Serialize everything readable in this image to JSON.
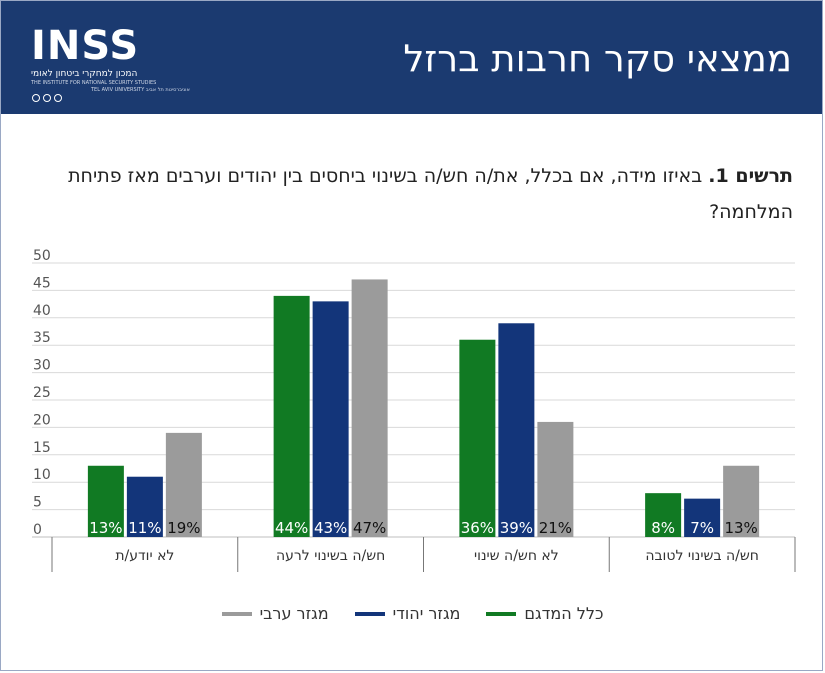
{
  "header": {
    "title": "ממצאי סקר חרבות ברזל",
    "logo_word": "INSS",
    "logo_hebrew": "המכון למחקרי ביטחון לאומי",
    "logo_english": "THE INSTITUTE FOR NATIONAL SECURITY STUDIES",
    "logo_university": "TEL AVIV UNIVERSITY אוניברסיטת תל אביב"
  },
  "question": {
    "prefix": "תרשים 1.",
    "text": " באיזו מידה, אם בכלל, את/ה חש/ה בשינוי ביחסים בין יהודים וערבים מאז פתיחת המלחמה?"
  },
  "chart_data": {
    "type": "bar",
    "categories": [
      "חש/ה בשינוי לטובה",
      "לא חש/ה שינוי",
      "חש/ה בשינוי לרעה",
      "לא יודע/ת"
    ],
    "series": [
      {
        "name": "כלל המדגם",
        "values": [
          8,
          36,
          44,
          13
        ],
        "labels": [
          "8%",
          "36%",
          "44%",
          "13%"
        ],
        "color": "#117a23"
      },
      {
        "name": "מגזר יהודי",
        "values": [
          7,
          39,
          43,
          11
        ],
        "labels": [
          "7%",
          "39%",
          "43%",
          "11%"
        ],
        "color": "#13357a"
      },
      {
        "name": "מגזר ערבי",
        "values": [
          13,
          21,
          47,
          19
        ],
        "labels": [
          "13%",
          "21%",
          "47%",
          "19%"
        ],
        "color": "#9b9b9b"
      }
    ],
    "y_ticks": [
      "0",
      "5",
      "10",
      "15",
      "20",
      "25",
      "30",
      "35",
      "40",
      "45",
      "50"
    ],
    "ylim": [
      0,
      50
    ],
    "grid": true,
    "legend_position": "bottom"
  }
}
